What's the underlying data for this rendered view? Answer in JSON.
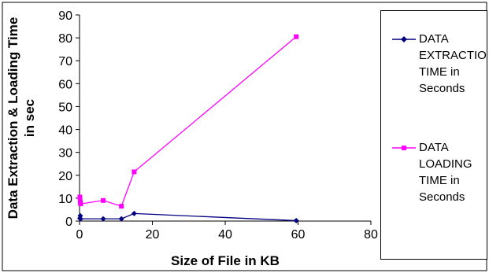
{
  "chart_data": {
    "type": "scatter",
    "xlabel": "Size of File in KB",
    "ylabel": "Data Extraction & Loading Time in sec",
    "xlim": [
      0,
      80
    ],
    "ylim": [
      0,
      90
    ],
    "x_ticks": [
      "0",
      "20",
      "40",
      "60",
      "80"
    ],
    "y_ticks": [
      "0",
      "10",
      "20",
      "30",
      "40",
      "50",
      "60",
      "70",
      "80",
      "90"
    ],
    "grid": false,
    "legend_position": "right",
    "series": [
      {
        "name": "DATA\nEXTRACTION\nTIME in\nSeconds",
        "color": "#000080",
        "marker": "diamond",
        "x": [
          0.1,
          0.2,
          0.3,
          6.5,
          11.5,
          15,
          59.5
        ],
        "y": [
          1.2,
          2.3,
          1.0,
          1.0,
          1.0,
          3.3,
          0.2
        ]
      },
      {
        "name": "DATA\nLOADING\nTIME in\nSeconds",
        "color": "#FF00FF",
        "marker": "square",
        "x": [
          0.1,
          0.2,
          0.3,
          6.5,
          11.5,
          15,
          59.5
        ],
        "y": [
          10.5,
          8.5,
          7.5,
          9.0,
          6.5,
          21.5,
          80.5
        ]
      }
    ]
  }
}
